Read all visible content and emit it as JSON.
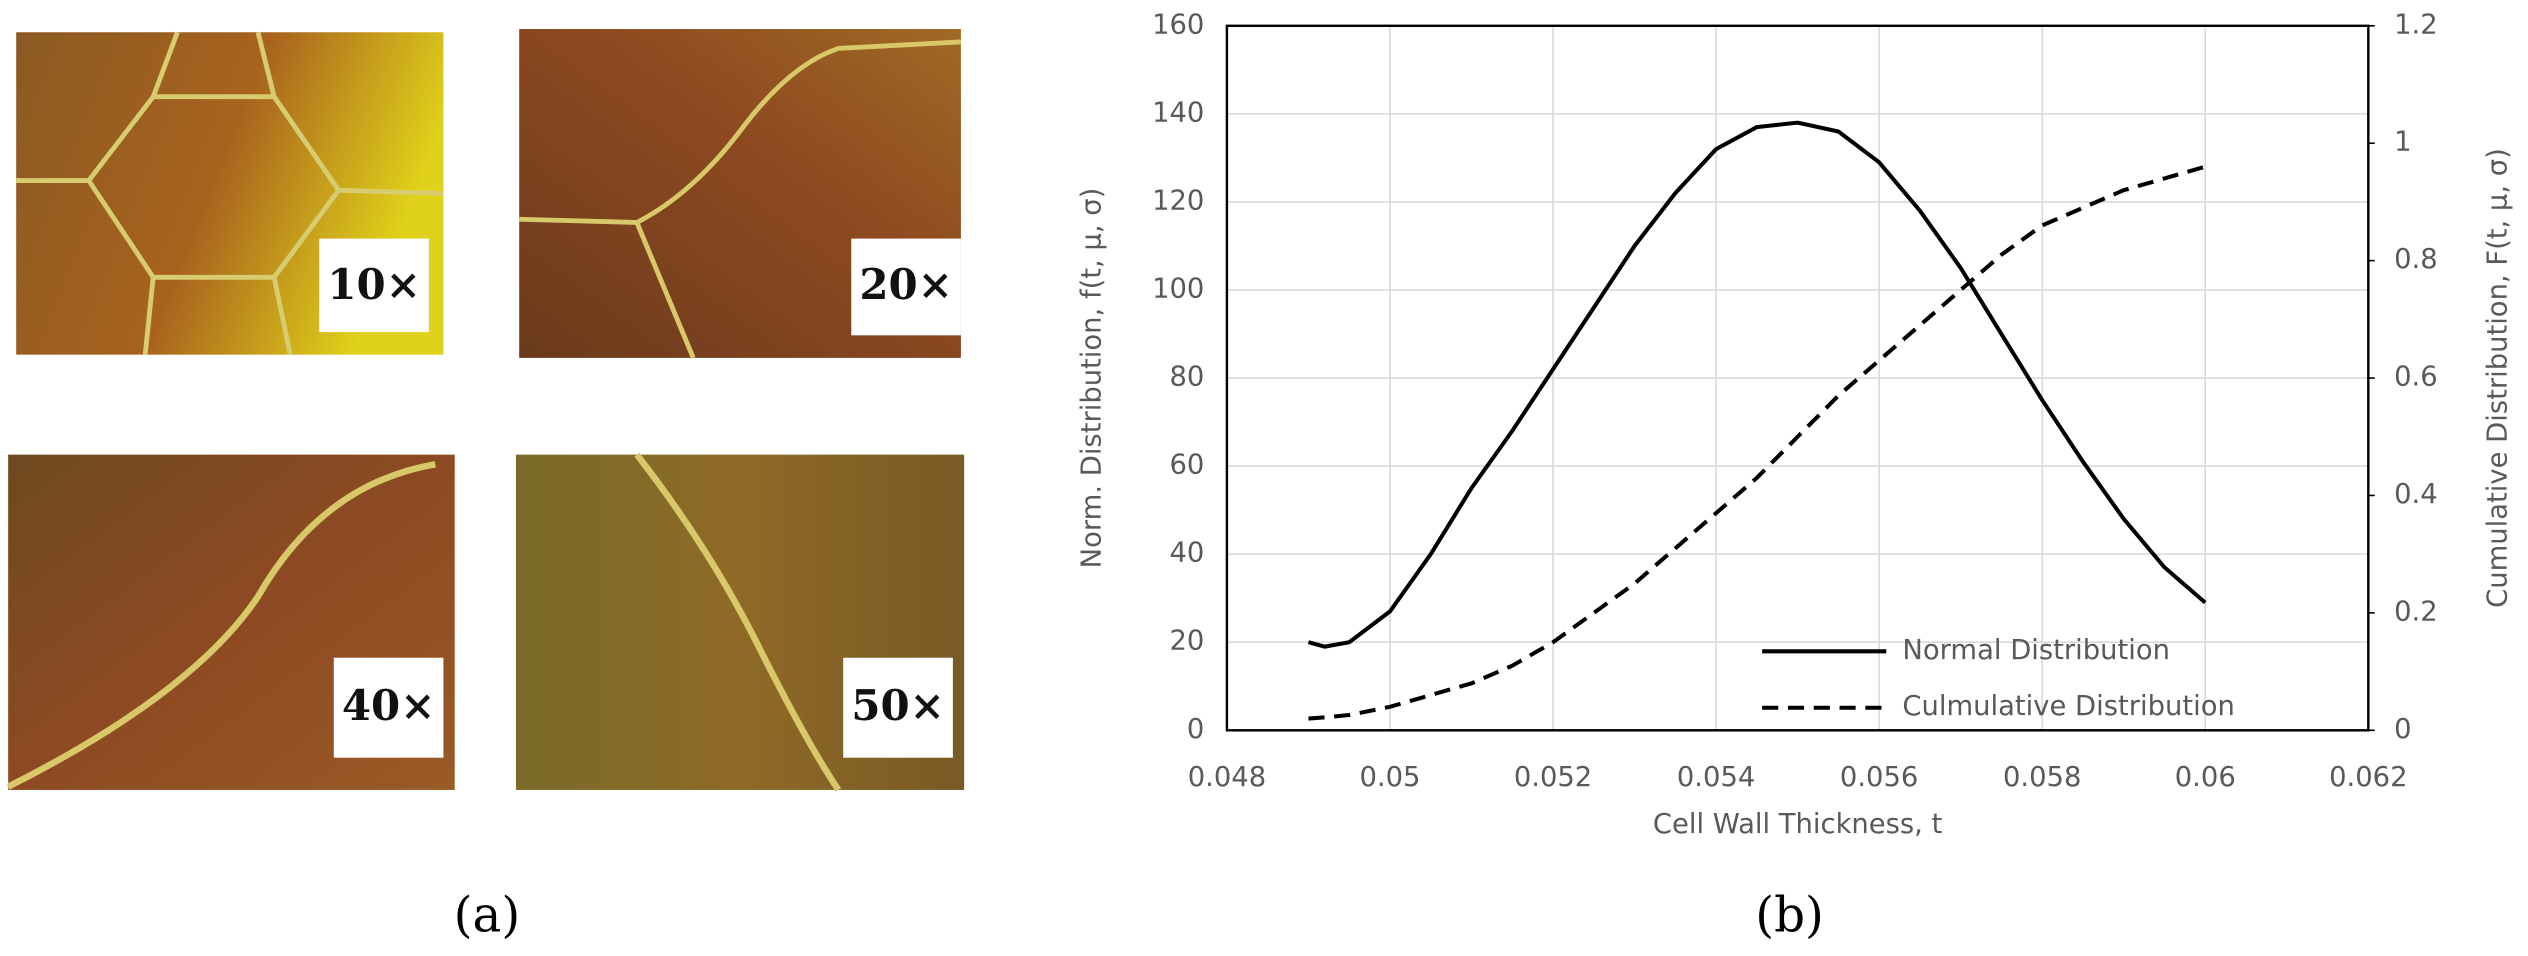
{
  "panels": {
    "a": {
      "caption": "(a)",
      "images": [
        {
          "label": "10×"
        },
        {
          "label": "20×"
        },
        {
          "label": "40×"
        },
        {
          "label": "50×"
        }
      ]
    },
    "b": {
      "caption": "(b)"
    }
  },
  "chart_data": {
    "type": "line",
    "xlabel": "Cell Wall Thickness, t",
    "ylabel": "Norm. Distribution, f(t, μ, σ)",
    "y2label": "Cumulative Distribution, F(t, μ, σ)",
    "x": [
      0.049,
      0.0492,
      0.0495,
      0.05,
      0.0505,
      0.051,
      0.0515,
      0.052,
      0.0525,
      0.053,
      0.0535,
      0.054,
      0.0545,
      0.055,
      0.0555,
      0.056,
      0.0565,
      0.057,
      0.0575,
      0.058,
      0.0585,
      0.059,
      0.0595,
      0.06
    ],
    "series": [
      {
        "name": "Normal Distribution",
        "color": "#000000",
        "dash": "solid",
        "values": [
          20,
          19,
          20,
          27,
          40,
          55,
          68,
          82,
          96,
          110,
          122,
          132,
          137,
          138,
          136,
          129,
          118,
          105,
          90,
          75,
          61,
          48,
          37,
          29
        ]
      },
      {
        "name": "Culmulative Distribution",
        "color": "#000000",
        "dash": "dashed",
        "axis": "y2",
        "values": [
          0.02,
          0.022,
          0.026,
          0.04,
          0.06,
          0.08,
          0.11,
          0.15,
          0.2,
          0.25,
          0.31,
          0.37,
          0.43,
          0.5,
          0.57,
          0.63,
          0.69,
          0.75,
          0.81,
          0.86,
          0.89,
          0.92,
          0.94,
          0.96
        ]
      }
    ],
    "xlim": [
      0.048,
      0.062
    ],
    "xticks": [
      0.048,
      0.05,
      0.052,
      0.054,
      0.056,
      0.058,
      0.06,
      0.062
    ],
    "ylim": [
      0,
      160
    ],
    "yticks": [
      0,
      20,
      40,
      60,
      80,
      100,
      120,
      140,
      160
    ],
    "y2lim": [
      0,
      1.2
    ],
    "y2ticks": [
      0,
      0.2,
      0.4,
      0.6,
      0.8,
      1,
      1.2
    ],
    "grid": true,
    "legend": "lower right"
  }
}
